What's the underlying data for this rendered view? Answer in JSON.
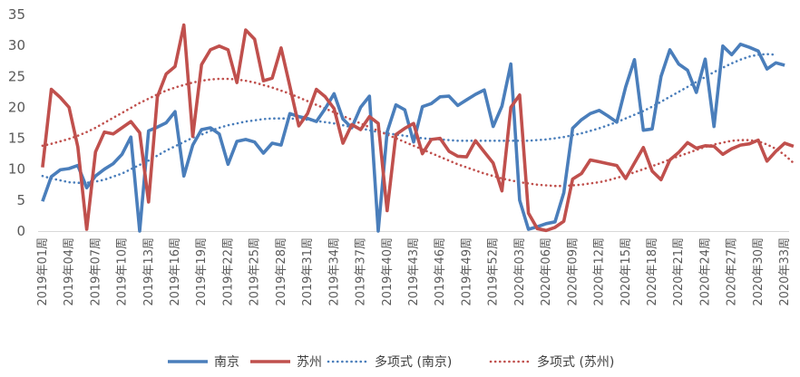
{
  "chart_data": {
    "type": "line",
    "title": "",
    "xlabel": "",
    "ylabel": "",
    "ylim": [
      0,
      35
    ],
    "yticks": [
      0,
      5,
      10,
      15,
      20,
      25,
      30,
      35
    ],
    "grid": false,
    "legend_position": "bottom",
    "x_tick_labels": [
      "2019年01周",
      "2019年04周",
      "2019年07周",
      "2019年10周",
      "2019年13周",
      "2019年16周",
      "2019年19周",
      "2019年22周",
      "2019年25周",
      "2019年28周",
      "2019年31周",
      "2019年34周",
      "2019年37周",
      "2019年40周",
      "2019年43周",
      "2019年46周",
      "2019年49周",
      "2019年52周",
      "2020年03周",
      "2020年06周",
      "2020年09周",
      "2020年12周",
      "2020年15周",
      "2020年18周",
      "2020年21周",
      "2020年24周",
      "2020年27周",
      "2020年30周",
      "2020年33周"
    ],
    "series": [
      {
        "name": "南京",
        "color": "#4a7ebb",
        "style": "solid",
        "values": [
          4.8,
          8.8,
          9.9,
          10.1,
          10.6,
          7.0,
          8.9,
          10.0,
          10.9,
          12.4,
          15.2,
          0.0,
          16.2,
          16.8,
          17.5,
          19.3,
          8.9,
          13.9,
          16.4,
          16.7,
          15.7,
          10.8,
          14.5,
          14.8,
          14.4,
          12.6,
          14.2,
          13.9,
          19.0,
          18.5,
          18.2,
          17.7,
          19.8,
          22.2,
          18.1,
          16.7,
          20.0,
          21.8,
          0.0,
          16.0,
          20.4,
          19.6,
          14.4,
          20.1,
          20.6,
          21.7,
          21.8,
          20.3,
          21.2,
          22.1,
          22.8,
          16.9,
          20.2,
          27.0,
          5.0,
          0.3,
          0.7,
          1.2,
          1.5,
          6.2,
          16.6,
          18.0,
          19.0,
          19.5,
          18.6,
          17.6,
          23.3,
          27.7,
          16.3,
          16.5,
          25.0,
          29.3,
          27.0,
          26.0,
          22.4,
          27.8,
          16.9,
          29.9,
          28.5,
          30.2,
          29.7,
          29.1,
          26.2,
          27.2,
          26.8
        ]
      },
      {
        "name": "苏州",
        "color": "#c0504d",
        "style": "solid",
        "values": [
          10.3,
          22.9,
          21.6,
          20.0,
          13.6,
          0.3,
          12.8,
          16.0,
          15.7,
          16.7,
          17.7,
          15.9,
          4.7,
          21.7,
          25.4,
          26.6,
          33.3,
          15.3,
          26.9,
          29.3,
          29.9,
          29.3,
          24.0,
          32.5,
          31.0,
          24.3,
          24.7,
          29.6,
          23.4,
          17.0,
          19.0,
          22.9,
          21.7,
          19.8,
          14.2,
          17.2,
          16.4,
          18.5,
          17.4,
          3.3,
          15.6,
          16.6,
          17.4,
          12.5,
          14.8,
          15.0,
          12.9,
          12.1,
          12.0,
          14.6,
          12.8,
          11.0,
          6.5,
          20.0,
          22.0,
          2.9,
          0.4,
          0.1,
          0.6,
          1.6,
          8.4,
          9.3,
          11.5,
          11.2,
          10.9,
          10.6,
          8.5,
          11.0,
          13.5,
          9.7,
          8.3,
          11.5,
          12.7,
          14.3,
          13.4,
          13.8,
          13.7,
          12.4,
          13.3,
          13.9,
          14.1,
          14.7,
          11.3,
          12.9,
          14.2,
          13.7
        ]
      },
      {
        "name": "多项式 (南京)",
        "color": "#4a7ebb",
        "style": "dotted",
        "values": [
          8.9,
          8.5,
          8.2,
          7.9,
          7.8,
          7.8,
          8.0,
          8.3,
          8.8,
          9.3,
          10.0,
          10.7,
          11.4,
          12.2,
          13.0,
          13.7,
          14.4,
          15.1,
          15.6,
          16.2,
          16.7,
          17.1,
          17.4,
          17.7,
          17.9,
          18.1,
          18.2,
          18.2,
          18.2,
          18.1,
          18.0,
          17.8,
          17.6,
          17.4,
          17.1,
          16.8,
          16.6,
          16.3,
          16.0,
          15.8,
          15.6,
          15.4,
          15.2,
          15.0,
          14.9,
          14.8,
          14.7,
          14.6,
          14.6,
          14.6,
          14.6,
          14.6,
          14.6,
          14.6,
          14.6,
          14.6,
          14.7,
          14.8,
          15.0,
          15.2,
          15.5,
          15.8,
          16.2,
          16.6,
          17.1,
          17.6,
          18.2,
          18.8,
          19.4,
          20.1,
          20.9,
          21.7,
          22.5,
          23.3,
          24.1,
          24.9,
          25.7,
          26.4,
          27.1,
          27.7,
          28.2,
          28.5,
          28.6,
          28.5
        ]
      },
      {
        "name": "多项式 (苏州)",
        "color": "#c0504d",
        "style": "dotted",
        "values": [
          13.8,
          14.1,
          14.5,
          14.9,
          15.4,
          16.0,
          16.7,
          17.5,
          18.3,
          19.1,
          19.9,
          20.7,
          21.4,
          22.1,
          22.7,
          23.2,
          23.6,
          24.0,
          24.3,
          24.5,
          24.6,
          24.6,
          24.5,
          24.3,
          24.0,
          23.6,
          23.2,
          22.7,
          22.2,
          21.6,
          21.0,
          20.4,
          19.8,
          19.2,
          18.6,
          18.0,
          17.4,
          16.8,
          16.2,
          15.6,
          15.0,
          14.4,
          13.8,
          13.2,
          12.6,
          12.0,
          11.4,
          10.8,
          10.3,
          9.8,
          9.3,
          8.9,
          8.5,
          8.2,
          7.9,
          7.7,
          7.5,
          7.4,
          7.3,
          7.3,
          7.4,
          7.5,
          7.7,
          7.9,
          8.2,
          8.6,
          9.0,
          9.5,
          10.0,
          10.5,
          11.0,
          11.6,
          12.1,
          12.6,
          13.1,
          13.6,
          14.0,
          14.3,
          14.6,
          14.7,
          14.7,
          14.5,
          14.0,
          13.3,
          12.3,
          11.0
        ]
      }
    ]
  }
}
